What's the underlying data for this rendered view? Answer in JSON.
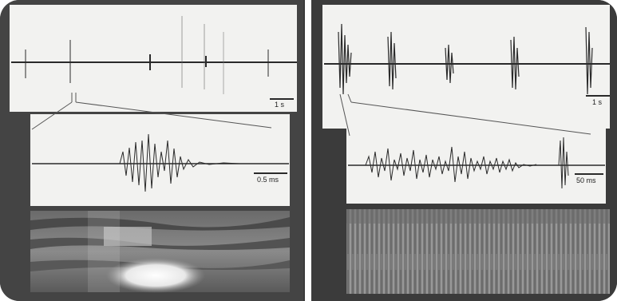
{
  "figure": {
    "left": {
      "top_scale_label": "1 s",
      "mid_scale_label": "0.5 ms"
    },
    "right": {
      "top_scale_label": "1 s",
      "mid_scale_label": "50 ms"
    },
    "colors": {
      "background": "#3a3a3a",
      "sheet": "#f2f2f0",
      "trace": "#2a2a2a",
      "divider": "#ffffff"
    }
  }
}
